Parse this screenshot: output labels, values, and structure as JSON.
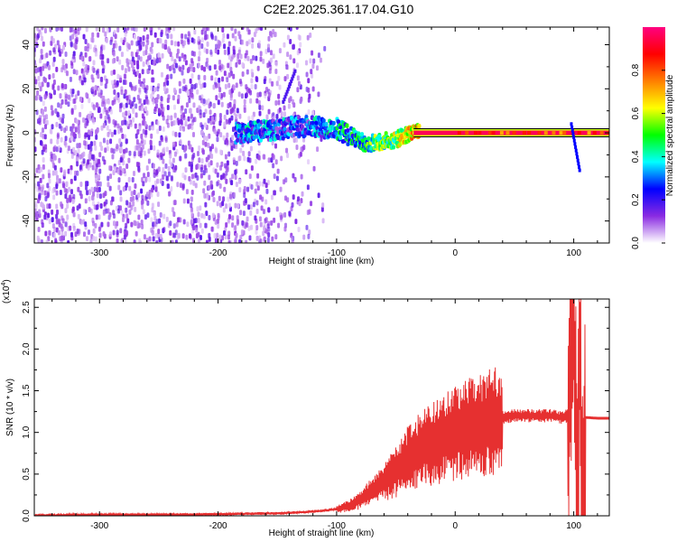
{
  "title": "C2E2.2025.361.17.04.G10",
  "colors": {
    "snr_line": "#e63030",
    "spectrogram_background": "#ffffff",
    "spectrogram_noise": "#7a2cf0",
    "spectrogram_carrier": "#e00050"
  },
  "chart_data": [
    {
      "type": "heatmap",
      "title": "C2E2.2025.361.17.04.G10",
      "xlabel": "Height of straight line (km)",
      "ylabel": "Frequency (Hz)",
      "xlim": [
        -355,
        130
      ],
      "ylim": [
        -50,
        48
      ],
      "x_ticks": [
        -300,
        -200,
        -100,
        0,
        100
      ],
      "x_tick_labels": [
        "-300",
        "-200",
        "-100",
        "0",
        "100"
      ],
      "y_ticks": [
        -40,
        -20,
        0,
        20,
        40
      ],
      "y_tick_labels": [
        "-40",
        "-20",
        "0",
        "20",
        "40"
      ],
      "colorbar": {
        "label": "Normalized spectral amplitude",
        "range": [
          0,
          1
        ],
        "ticks": [
          0.0,
          0.2,
          0.4,
          0.6,
          0.8
        ],
        "tick_labels": [
          "0.0",
          "0.2",
          "0.4",
          "0.6",
          "0.8"
        ],
        "colormap": [
          "#ffffff",
          "#8a2be2",
          "#0000ff",
          "#00ffff",
          "#00ff00",
          "#ffff00",
          "#ff7f00",
          "#ff0000",
          "#ff0080"
        ]
      },
      "features": {
        "noise_region_x": [
          -355,
          -110
        ],
        "signal_start_x": -185,
        "carrier_frequency": 0,
        "signal_track": [
          {
            "x": -185,
            "f": 0,
            "amp": 0.45
          },
          {
            "x": -160,
            "f": 1,
            "amp": 0.45
          },
          {
            "x": -130,
            "f": 3,
            "amp": 0.4
          },
          {
            "x": -100,
            "f": 2,
            "amp": 0.5
          },
          {
            "x": -75,
            "f": -5,
            "amp": 0.6
          },
          {
            "x": -50,
            "f": -3,
            "amp": 0.7
          },
          {
            "x": -35,
            "f": 0,
            "amp": 0.85
          },
          {
            "x": 0,
            "f": 0,
            "amp": 0.95
          },
          {
            "x": 50,
            "f": 0,
            "amp": 0.95
          },
          {
            "x": 100,
            "f": 0,
            "amp": 0.9
          },
          {
            "x": 130,
            "f": 0,
            "amp": 0.9
          }
        ],
        "streak": [
          {
            "x": -145,
            "f": 14
          },
          {
            "x": -135,
            "f": 28
          }
        ],
        "tail_at_100": [
          {
            "x": 98,
            "f": 4
          },
          {
            "x": 105,
            "f": -17
          }
        ]
      }
    },
    {
      "type": "line",
      "xlabel": "Height of straight line (km)",
      "ylabel": "SNR (10 * v/v)",
      "y_multiplier_label": "(x10",
      "y_multiplier_exponent": "4",
      "y_multiplier_close": ")",
      "xlim": [
        -355,
        130
      ],
      "ylim": [
        0,
        2.6
      ],
      "x_ticks": [
        -300,
        -200,
        -100,
        0,
        100
      ],
      "x_tick_labels": [
        "-300",
        "-200",
        "-100",
        "0",
        "100"
      ],
      "y_ticks": [
        0.0,
        0.5,
        1.0,
        1.5,
        2.0,
        2.5
      ],
      "y_tick_labels": [
        "0.0",
        "0.5",
        "1.0",
        "1.5",
        "2.0",
        "2.5"
      ],
      "series": [
        {
          "x": [
            -355,
            -300,
            -250,
            -200,
            -150,
            -120,
            -100,
            -90,
            -80,
            -70,
            -60,
            -50,
            -40,
            -30,
            -20,
            -10,
            0,
            10,
            20,
            30,
            40,
            50,
            60,
            70,
            80,
            90,
            95,
            100,
            103,
            105,
            107,
            110,
            120,
            130
          ],
          "values": [
            0.0,
            0.01,
            0.01,
            0.02,
            0.03,
            0.05,
            0.08,
            0.12,
            0.2,
            0.3,
            0.42,
            0.55,
            0.7,
            0.8,
            0.88,
            0.95,
            1.02,
            1.07,
            1.1,
            1.15,
            1.18,
            1.2,
            1.2,
            1.2,
            1.2,
            1.18,
            1.2,
            2.58,
            0.08,
            2.08,
            0.1,
            1.18,
            1.17,
            1.17
          ]
        }
      ]
    }
  ]
}
